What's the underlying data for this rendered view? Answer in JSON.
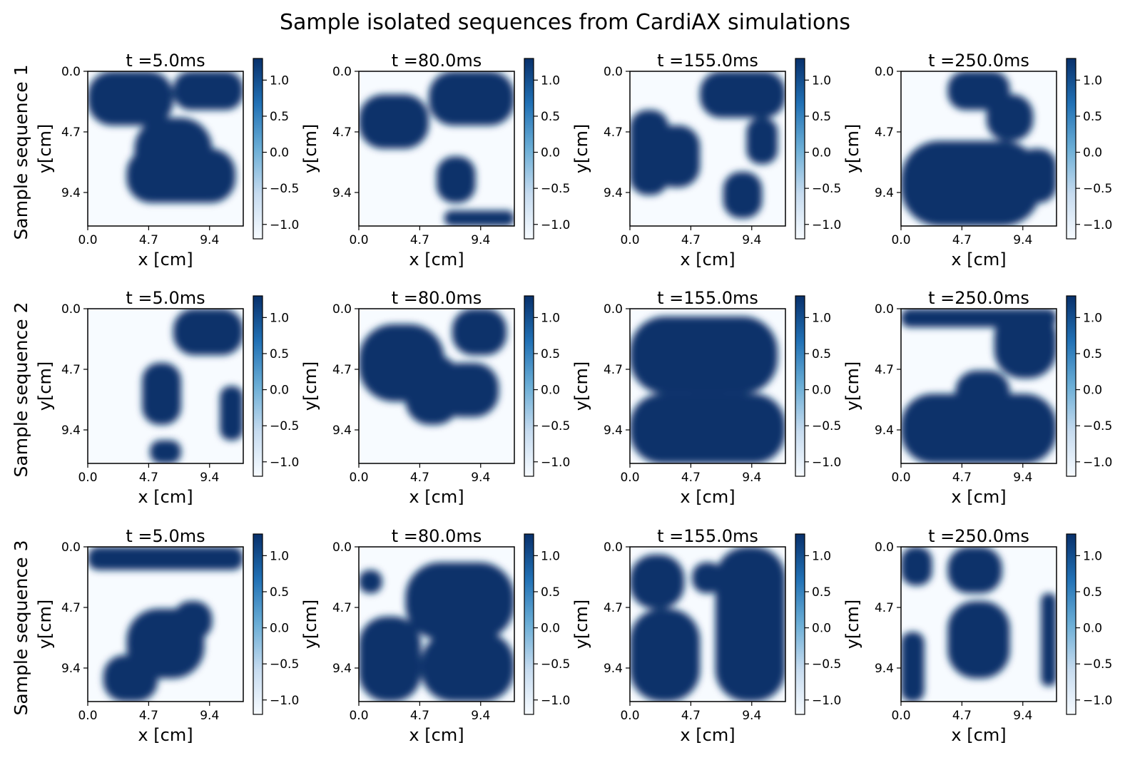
{
  "chart_data": {
    "type": "heatmap",
    "title": "Sample isolated sequences from CardiAX simulations",
    "colormap": "Blues",
    "row_labels": [
      "Sample sequence 1",
      "Sample sequence 2",
      "Sample sequence 3"
    ],
    "panel_titles": [
      "t =5.0ms",
      "t =80.0ms",
      "t =155.0ms",
      "t =250.0ms"
    ],
    "xlabel": "x [cm]",
    "ylabel": "y[cm]",
    "x_ticks": [
      "0.0",
      "4.7",
      "9.4"
    ],
    "y_ticks": [
      "0.0",
      "4.7",
      "9.4"
    ],
    "axis_range_cm": [
      0,
      12
    ],
    "colorbar_ticks": [
      "1.0",
      "0.5",
      "0.0",
      "−0.5",
      "−1.0"
    ],
    "colorbar_ticks_right": [
      "1.0",
      "0.5",
      "0.0",
      "−0.5",
      "−1.0"
    ],
    "colorbar_range": [
      -1.2,
      1.3
    ],
    "colors": {
      "low": "#f7fbff",
      "mid": "#6baed6",
      "high": "#08306b"
    }
  }
}
